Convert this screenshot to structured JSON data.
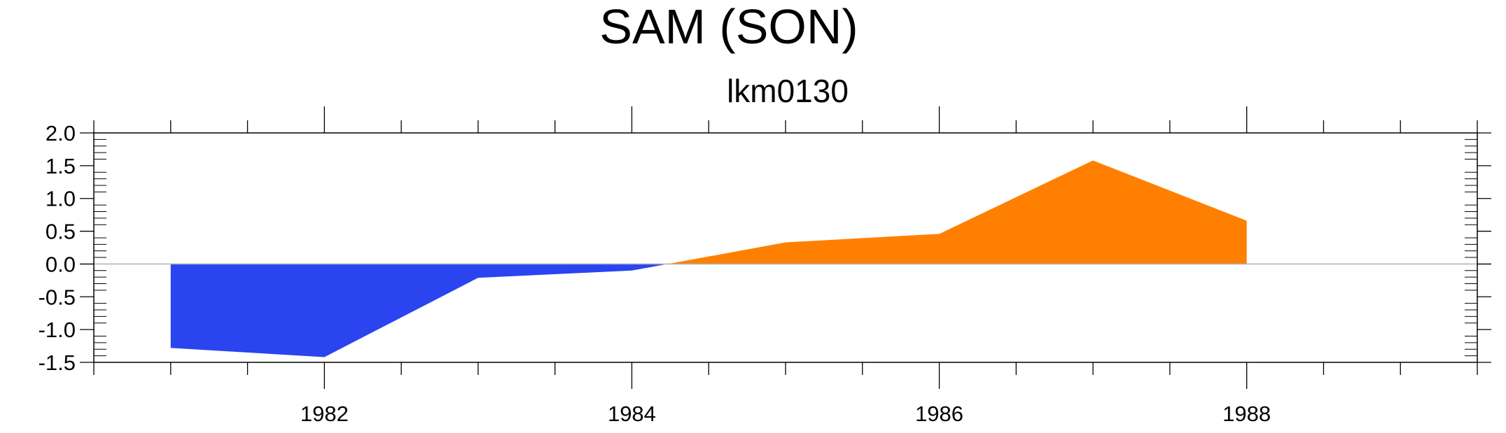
{
  "chart_data": {
    "type": "area",
    "title": "SAM (SON)",
    "subtitle": "lkm0130",
    "x": [
      1981,
      1982,
      1983,
      1984,
      1985,
      1986,
      1987,
      1988
    ],
    "values": [
      -1.28,
      -1.42,
      -0.21,
      -0.1,
      0.33,
      0.46,
      1.58,
      0.66
    ],
    "xlim": [
      1980.5,
      1989.5
    ],
    "ylim": [
      -1.5,
      2.0
    ],
    "xticks": [
      1982,
      1984,
      1986,
      1988
    ],
    "xtick_labels": [
      "1982",
      "1984",
      "1986",
      "1988"
    ],
    "yticks": [
      -1.5,
      -1.0,
      -0.5,
      0.0,
      0.5,
      1.0,
      1.5,
      2.0
    ],
    "ytick_labels": [
      "-1.5",
      "-1.0",
      "-0.5",
      "0.0",
      "0.5",
      "1.0",
      "1.5",
      "2.0"
    ],
    "reference_line": 0.0,
    "grid": false,
    "colors": {
      "positive": "#ff8000",
      "negative": "#2a44f0",
      "reference": "#b0b0b0",
      "axis": "#000000"
    }
  }
}
